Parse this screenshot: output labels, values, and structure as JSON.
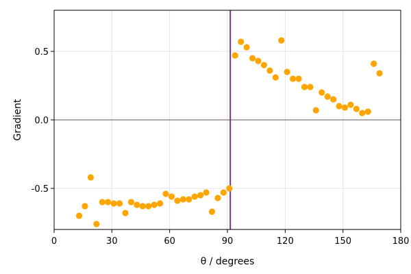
{
  "chart_data": {
    "type": "scatter",
    "title": "",
    "xlabel": "θ / degrees",
    "ylabel": "Gradient",
    "xlim": [
      0,
      180
    ],
    "ylim": [
      -0.8,
      0.8
    ],
    "x_ticks": [
      0,
      30,
      60,
      90,
      120,
      150,
      180
    ],
    "x_tick_labels": [
      "0",
      "30",
      "60",
      "90",
      "120",
      "150",
      "180"
    ],
    "y_ticks": [
      -0.5,
      0.0,
      0.5
    ],
    "y_tick_labels": [
      "-0.5",
      "0.0",
      "0.5"
    ],
    "grid": true,
    "reference_lines": {
      "horizontal_y": 0.0,
      "vertical_x": 91.5,
      "vertical_color": "#7b2d8e"
    },
    "series": [
      {
        "color": "#ffa500",
        "points": [
          [
            13,
            -0.7
          ],
          [
            16,
            -0.63
          ],
          [
            19,
            -0.42
          ],
          [
            22,
            -0.76
          ],
          [
            25,
            -0.6
          ],
          [
            28,
            -0.6
          ],
          [
            31,
            -0.61
          ],
          [
            34,
            -0.61
          ],
          [
            37,
            -0.68
          ],
          [
            40,
            -0.6
          ],
          [
            43,
            -0.62
          ],
          [
            46,
            -0.63
          ],
          [
            49,
            -0.63
          ],
          [
            52,
            -0.62
          ],
          [
            55,
            -0.61
          ],
          [
            58,
            -0.54
          ],
          [
            61,
            -0.56
          ],
          [
            64,
            -0.59
          ],
          [
            67,
            -0.58
          ],
          [
            70,
            -0.58
          ],
          [
            73,
            -0.56
          ],
          [
            76,
            -0.55
          ],
          [
            79,
            -0.53
          ],
          [
            82,
            -0.67
          ],
          [
            85,
            -0.57
          ],
          [
            88,
            -0.53
          ],
          [
            91,
            -0.5
          ],
          [
            94,
            0.47
          ],
          [
            97,
            0.57
          ],
          [
            100,
            0.53
          ],
          [
            103,
            0.45
          ],
          [
            106,
            0.43
          ],
          [
            109,
            0.4
          ],
          [
            112,
            0.36
          ],
          [
            115,
            0.31
          ],
          [
            118,
            0.58
          ],
          [
            121,
            0.35
          ],
          [
            124,
            0.3
          ],
          [
            127,
            0.3
          ],
          [
            130,
            0.24
          ],
          [
            133,
            0.24
          ],
          [
            136,
            0.07
          ],
          [
            139,
            0.2
          ],
          [
            142,
            0.17
          ],
          [
            145,
            0.15
          ],
          [
            148,
            0.1
          ],
          [
            151,
            0.09
          ],
          [
            154,
            0.11
          ],
          [
            157,
            0.08
          ],
          [
            160,
            0.05
          ],
          [
            163,
            0.06
          ],
          [
            166,
            0.41
          ],
          [
            169,
            0.34
          ]
        ]
      }
    ]
  }
}
